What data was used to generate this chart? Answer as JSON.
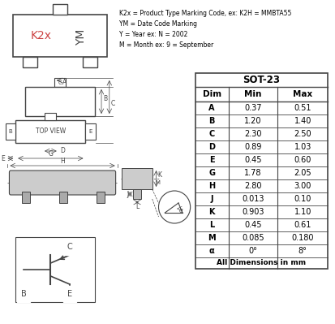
{
  "marking_notes": [
    "K2x = Product Type Marking Code, ex: K2H = MMBTA55",
    "YM = Date Code Marking",
    "Y = Year ex: N = 2002",
    "M = Month ex: 9 = September"
  ],
  "table_title": "SOT-23",
  "columns": [
    "Dim",
    "Min",
    "Max"
  ],
  "rows": [
    [
      "A",
      "0.37",
      "0.51"
    ],
    [
      "B",
      "1.20",
      "1.40"
    ],
    [
      "C",
      "2.30",
      "2.50"
    ],
    [
      "D",
      "0.89",
      "1.03"
    ],
    [
      "E",
      "0.45",
      "0.60"
    ],
    [
      "G",
      "1.78",
      "2.05"
    ],
    [
      "H",
      "2.80",
      "3.00"
    ],
    [
      "J",
      "0.013",
      "0.10"
    ],
    [
      "K",
      "0.903",
      "1.10"
    ],
    [
      "L",
      "0.45",
      "0.61"
    ],
    [
      "M",
      "0.085",
      "0.180"
    ],
    [
      "α",
      "0°",
      "8°"
    ]
  ],
  "footer": "All Dimensions in mm",
  "bg_color": "#ffffff",
  "text_color": "#000000",
  "blue_color": "#d04040",
  "line_color": "#444444",
  "gray_color": "#aaaaaa"
}
